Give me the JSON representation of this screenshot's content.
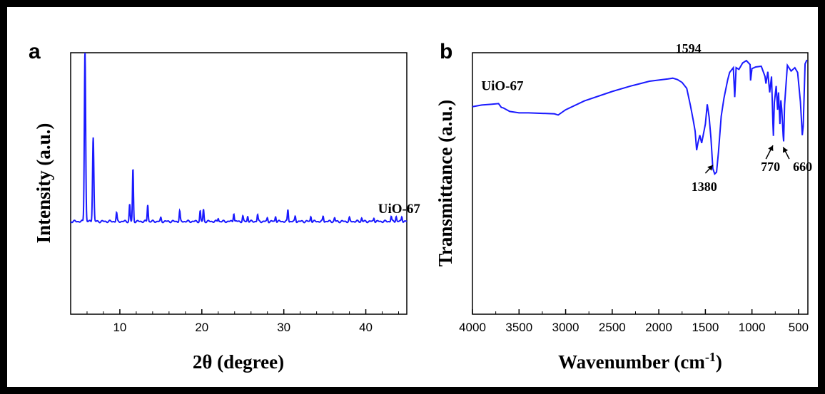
{
  "chart_data": [
    {
      "panel": "a",
      "type": "line",
      "xlabel": "2θ (degree)",
      "ylabel": "Intensity (a.u.)",
      "xlim": [
        4,
        45
      ],
      "ylim": [
        -0.55,
        1.0
      ],
      "xticks": [
        10,
        20,
        30,
        40
      ],
      "xtick_labels": [
        "10",
        "20",
        "30",
        "40"
      ],
      "series": [
        {
          "name": "UiO-67",
          "color": "#1a1aff",
          "baseline": 0.0,
          "peaks": [
            [
              5.75,
              1.02
            ],
            [
              6.75,
              0.5
            ],
            [
              9.6,
              0.05
            ],
            [
              11.2,
              0.1
            ],
            [
              11.6,
              0.31
            ],
            [
              13.4,
              0.1
            ],
            [
              15.0,
              0.02
            ],
            [
              17.3,
              0.06
            ],
            [
              19.8,
              0.06
            ],
            [
              20.2,
              0.07
            ],
            [
              22.0,
              0.02
            ],
            [
              23.9,
              0.05
            ],
            [
              25.0,
              0.03
            ],
            [
              25.6,
              0.03
            ],
            [
              26.8,
              0.04
            ],
            [
              28.0,
              0.02
            ],
            [
              29.0,
              0.03
            ],
            [
              30.5,
              0.07
            ],
            [
              31.4,
              0.03
            ],
            [
              33.3,
              0.03
            ],
            [
              34.8,
              0.03
            ],
            [
              36.2,
              0.02
            ],
            [
              38.0,
              0.02
            ],
            [
              39.5,
              0.02
            ],
            [
              41.0,
              0.02
            ],
            [
              43.1,
              0.03
            ],
            [
              43.7,
              0.03
            ],
            [
              44.4,
              0.03
            ]
          ]
        }
      ],
      "annotations": [
        {
          "text": "UiO-67",
          "x": 41.5,
          "y": 0.05
        }
      ]
    },
    {
      "panel": "b",
      "type": "line",
      "xlabel": "Wavenumber (cm",
      "xlabel_sup": "-1",
      "xlabel_tail": ")",
      "ylabel": "Transmittance (a.u.)",
      "xlim": [
        4000,
        400
      ],
      "ylim": [
        -0.1,
        1.0
      ],
      "xticks": [
        4000,
        3500,
        3000,
        2500,
        2000,
        1500,
        1000,
        500
      ],
      "xtick_labels": [
        "4000",
        "3500",
        "3000",
        "2500",
        "2000",
        "1500",
        "1000",
        "500"
      ],
      "series": [
        {
          "name": "UiO-67",
          "color": "#1a1aff",
          "points": [
            [
              4000,
              0.773
            ],
            [
              3900,
              0.78
            ],
            [
              3800,
              0.783
            ],
            [
              3720,
              0.786
            ],
            [
              3690,
              0.77
            ],
            [
              3670,
              0.768
            ],
            [
              3600,
              0.753
            ],
            [
              3500,
              0.747
            ],
            [
              3400,
              0.747
            ],
            [
              3250,
              0.745
            ],
            [
              3120,
              0.743
            ],
            [
              3080,
              0.738
            ],
            [
              3000,
              0.76
            ],
            [
              2800,
              0.797
            ],
            [
              2500,
              0.837
            ],
            [
              2300,
              0.86
            ],
            [
              2100,
              0.88
            ],
            [
              1900,
              0.89
            ],
            [
              1850,
              0.893
            ],
            [
              1800,
              0.887
            ],
            [
              1750,
              0.875
            ],
            [
              1700,
              0.85
            ],
            [
              1660,
              0.777
            ],
            [
              1630,
              0.715
            ],
            [
              1610,
              0.67
            ],
            [
              1594,
              0.59
            ],
            [
              1580,
              0.62
            ],
            [
              1560,
              0.653
            ],
            [
              1540,
              0.62
            ],
            [
              1500,
              0.7
            ],
            [
              1480,
              0.783
            ],
            [
              1460,
              0.73
            ],
            [
              1440,
              0.64
            ],
            [
              1420,
              0.513
            ],
            [
              1400,
              0.49
            ],
            [
              1380,
              0.498
            ],
            [
              1360,
              0.58
            ],
            [
              1330,
              0.733
            ],
            [
              1300,
              0.81
            ],
            [
              1260,
              0.887
            ],
            [
              1240,
              0.917
            ],
            [
              1200,
              0.937
            ],
            [
              1185,
              0.813
            ],
            [
              1170,
              0.937
            ],
            [
              1140,
              0.93
            ],
            [
              1100,
              0.957
            ],
            [
              1060,
              0.967
            ],
            [
              1020,
              0.95
            ],
            [
              1015,
              0.883
            ],
            [
              1000,
              0.933
            ],
            [
              960,
              0.94
            ],
            [
              900,
              0.943
            ],
            [
              860,
              0.9
            ],
            [
              850,
              0.87
            ],
            [
              830,
              0.92
            ],
            [
              810,
              0.833
            ],
            [
              790,
              0.9
            ],
            [
              775,
              0.7
            ],
            [
              770,
              0.65
            ],
            [
              760,
              0.79
            ],
            [
              740,
              0.86
            ],
            [
              725,
              0.76
            ],
            [
              715,
              0.833
            ],
            [
              700,
              0.7
            ],
            [
              690,
              0.8
            ],
            [
              680,
              0.76
            ],
            [
              665,
              0.65
            ],
            [
              660,
              0.627
            ],
            [
              650,
              0.78
            ],
            [
              620,
              0.947
            ],
            [
              580,
              0.923
            ],
            [
              540,
              0.937
            ],
            [
              510,
              0.917
            ],
            [
              480,
              0.793
            ],
            [
              460,
              0.653
            ],
            [
              450,
              0.69
            ],
            [
              430,
              0.953
            ],
            [
              410,
              0.97
            ]
          ]
        }
      ],
      "annotations": [
        {
          "text": "UiO-67",
          "x": 3905,
          "y": 0.842
        },
        {
          "text": "1594",
          "x": 1820,
          "y": 1.0
        },
        {
          "text": "1380",
          "x": 1650,
          "y": 0.418
        },
        {
          "text": "770",
          "x": 905,
          "y": 0.503
        },
        {
          "text": "660",
          "x": 560,
          "y": 0.503
        }
      ],
      "arrows": [
        {
          "from": [
            1500,
            0.493
          ],
          "to": [
            1420,
            0.527
          ]
        },
        {
          "from": [
            850,
            0.553
          ],
          "to": [
            775,
            0.61
          ]
        },
        {
          "from": [
            600,
            0.553
          ],
          "to": [
            665,
            0.603
          ]
        }
      ]
    }
  ]
}
